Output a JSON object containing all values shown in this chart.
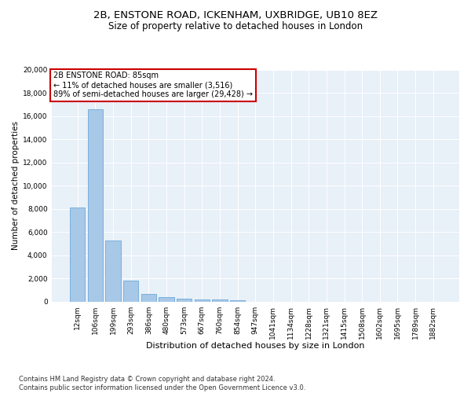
{
  "title1": "2B, ENSTONE ROAD, ICKENHAM, UXBRIDGE, UB10 8EZ",
  "title2": "Size of property relative to detached houses in London",
  "xlabel": "Distribution of detached houses by size in London",
  "ylabel": "Number of detached properties",
  "categories": [
    "12sqm",
    "106sqm",
    "199sqm",
    "293sqm",
    "386sqm",
    "480sqm",
    "573sqm",
    "667sqm",
    "760sqm",
    "854sqm",
    "947sqm",
    "1041sqm",
    "1134sqm",
    "1228sqm",
    "1321sqm",
    "1415sqm",
    "1508sqm",
    "1602sqm",
    "1695sqm",
    "1789sqm",
    "1882sqm"
  ],
  "values": [
    8100,
    16600,
    5300,
    1850,
    700,
    380,
    280,
    220,
    180,
    150,
    0,
    0,
    0,
    0,
    0,
    0,
    0,
    0,
    0,
    0,
    0
  ],
  "bar_color": "#a8c8e8",
  "bar_edge_color": "#5a9fd4",
  "annotation_text": "2B ENSTONE ROAD: 85sqm\n← 11% of detached houses are smaller (3,516)\n89% of semi-detached houses are larger (29,428) →",
  "annotation_box_color": "#ffffff",
  "annotation_box_edge": "#cc0000",
  "ylim": [
    0,
    20000
  ],
  "yticks": [
    0,
    2000,
    4000,
    6000,
    8000,
    10000,
    12000,
    14000,
    16000,
    18000,
    20000
  ],
  "bg_color": "#e8f0f8",
  "footnote": "Contains HM Land Registry data © Crown copyright and database right 2024.\nContains public sector information licensed under the Open Government Licence v3.0.",
  "title1_fontsize": 9.5,
  "title2_fontsize": 8.5,
  "xlabel_fontsize": 8,
  "ylabel_fontsize": 7.5,
  "tick_fontsize": 6.5,
  "annot_fontsize": 7,
  "footnote_fontsize": 6
}
